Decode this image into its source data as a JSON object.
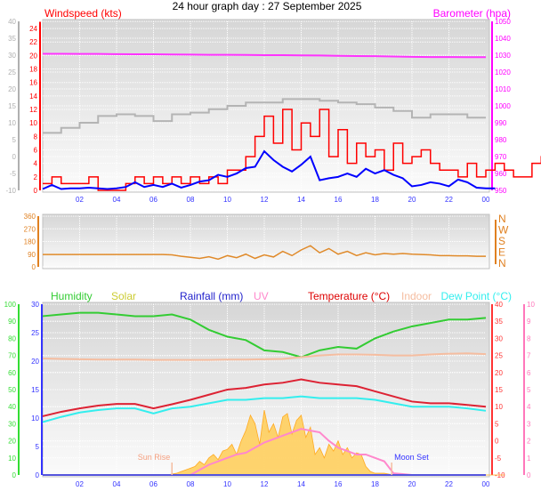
{
  "title": "24 hour graph day : 27 September 2025",
  "chart_data": [
    {
      "type": "line",
      "panel": "wind",
      "labels": {
        "left": "Windspeed (kts)",
        "right": "Barometer (hpa)"
      },
      "x_ticks": [
        "02",
        "04",
        "06",
        "08",
        "10",
        "12",
        "14",
        "16",
        "18",
        "20",
        "22",
        "00"
      ],
      "xlim_hours": [
        0,
        24
      ],
      "axes": {
        "outer_left": {
          "ticks": [
            -10,
            -5,
            0,
            5,
            10,
            15,
            20,
            25,
            30,
            35,
            40
          ],
          "range": [
            -10,
            40
          ],
          "color": "#b0b0b0"
        },
        "inner_left": {
          "ticks": [
            0,
            2,
            4,
            6,
            8,
            10,
            12,
            14,
            16,
            18,
            20,
            22,
            24
          ],
          "range": [
            0,
            25
          ],
          "color": "#ff0000"
        },
        "right": {
          "ticks": [
            950,
            960,
            970,
            980,
            990,
            1000,
            1010,
            1020,
            1030,
            1040,
            1050
          ],
          "range": [
            950,
            1050
          ],
          "color": "#ff00ff"
        }
      },
      "grid": true,
      "series": [
        {
          "key": "gust",
          "axis": "inner_left",
          "color": "#ff0000",
          "step": 0.5,
          "values": [
            1,
            2,
            1,
            1,
            1,
            2,
            0,
            0,
            0,
            1,
            2,
            1,
            2,
            1,
            2,
            1,
            2,
            1,
            2,
            1,
            3,
            3,
            5,
            8,
            11,
            7,
            12,
            6,
            10,
            8,
            12,
            5,
            9,
            4,
            7,
            5,
            6,
            3,
            7,
            4,
            5,
            6,
            4,
            3,
            3,
            2,
            4,
            2,
            3,
            4,
            3,
            2,
            2,
            4,
            5,
            3,
            2,
            2,
            1,
            2,
            1,
            1,
            2
          ]
        },
        {
          "key": "average",
          "axis": "inner_left",
          "color": "#0000ff",
          "step": 0.5,
          "values": [
            0.2,
            0.8,
            0.2,
            0.3,
            0.3,
            0.4,
            0.3,
            0.2,
            0.3,
            0.5,
            1.2,
            0.5,
            0.8,
            0.5,
            1,
            0.4,
            0.8,
            1.3,
            1.5,
            2.3,
            2,
            2.5,
            3.3,
            3.5,
            5.8,
            4.5,
            3.5,
            2.8,
            3.8,
            5,
            1.5,
            1.8,
            2,
            2.5,
            2,
            3.2,
            2.5,
            3,
            2.3,
            1.8,
            0.6,
            0.8,
            1.2,
            1,
            0.6,
            1.6,
            1.2,
            0.4,
            0.3,
            0.3
          ]
        },
        {
          "key": "barometer",
          "axis": "right",
          "color": "#ff33ff",
          "step": 1,
          "values": [
            1030.8,
            1030.8,
            1030.7,
            1030.7,
            1030.6,
            1030.5,
            1030.5,
            1030.4,
            1030.3,
            1030.2,
            1030.2,
            1030.1,
            1030,
            1030,
            1029.9,
            1029.8,
            1029.6,
            1029.5,
            1029.4,
            1029.2,
            1029,
            1028.9,
            1028.9,
            1028.8,
            1028.8
          ]
        },
        {
          "key": "grey-trace",
          "axis": "outer_left",
          "color": "#b4b4b4",
          "step": 1,
          "values": [
            7,
            8.5,
            10,
            12,
            12.5,
            12,
            10.5,
            12.5,
            13,
            14,
            15,
            16,
            16,
            17,
            17,
            16.5,
            16,
            15.5,
            14.5,
            13.5,
            11.5,
            12.5,
            12.5,
            11.5,
            11.5
          ]
        }
      ]
    },
    {
      "type": "line",
      "panel": "wind-direction",
      "axes": {
        "left": {
          "ticks": [
            0,
            90,
            180,
            270,
            360
          ],
          "range": [
            0,
            360
          ],
          "color": "#e08020"
        },
        "right": {
          "ticks": [
            "N",
            "W",
            "S",
            "E",
            "N"
          ],
          "color": "#e08020"
        }
      },
      "x_ticks": [
        "02",
        "04",
        "06",
        "08",
        "10",
        "12",
        "14",
        "16",
        "18",
        "20",
        "22",
        "00"
      ],
      "series": [
        {
          "key": "direction",
          "color": "#e08a2a",
          "step": 0.5,
          "values": [
            88,
            88,
            88,
            88,
            88,
            88,
            88,
            88,
            88,
            88,
            88,
            88,
            88,
            88,
            85,
            75,
            68,
            60,
            72,
            55,
            80,
            65,
            90,
            60,
            85,
            70,
            110,
            80,
            120,
            150,
            100,
            130,
            90,
            110,
            80,
            100,
            85,
            95,
            90,
            95,
            90,
            88,
            85,
            80,
            80,
            78,
            78,
            75,
            75
          ]
        }
      ]
    },
    {
      "type": "line",
      "panel": "temperature",
      "labels": {
        "humidity": "Humidity",
        "solar": "Solar",
        "rainfall": "Rainfall (mm)",
        "uv": "UV",
        "temperature": "Temperature (°C)",
        "indoor": "Indoor",
        "dewpoint": "Dew Point (°C)"
      },
      "x_ticks": [
        "02",
        "04",
        "06",
        "08",
        "10",
        "12",
        "14",
        "16",
        "18",
        "20",
        "22",
        "00"
      ],
      "axes": {
        "humidity": {
          "ticks": [
            0,
            10,
            20,
            30,
            40,
            50,
            60,
            70,
            80,
            90,
            100
          ],
          "range": [
            0,
            100
          ],
          "color": "#33dd33"
        },
        "rainfall": {
          "ticks": [
            0,
            5,
            10,
            15,
            20,
            25,
            30
          ],
          "range": [
            0,
            30
          ],
          "color": "#3333ff"
        },
        "temperature": {
          "ticks": [
            -10,
            -5,
            0,
            5,
            10,
            15,
            20,
            25,
            30,
            35,
            40
          ],
          "range": [
            -10,
            40
          ],
          "color": "#ff3333"
        },
        "uv": {
          "ticks": [
            0,
            1,
            2,
            3,
            4,
            5,
            6,
            7,
            8,
            9,
            10
          ],
          "range": [
            0,
            10
          ],
          "color": "#ff77bb"
        }
      },
      "annotations": [
        {
          "text": "Sun Rise",
          "hour": 7.0
        },
        {
          "text": "Moon Set",
          "hour": 18.9
        }
      ],
      "series": [
        {
          "key": "solar",
          "axis": "humidity",
          "color": "#ffbb33",
          "step": 0.25,
          "values": [
            0,
            0,
            0,
            0,
            0,
            0,
            0,
            0,
            0,
            0,
            0,
            0,
            0,
            0,
            0,
            0,
            0,
            0,
            0,
            0,
            0,
            0,
            0,
            0,
            0,
            0,
            0,
            0,
            0.5,
            1,
            2,
            3,
            4,
            5,
            8,
            6,
            10,
            12,
            9,
            14,
            15,
            18,
            12,
            20,
            26,
            35,
            30,
            18,
            38,
            25,
            30,
            22,
            34,
            36,
            24,
            32,
            35,
            22,
            28,
            12,
            16,
            10,
            18,
            14,
            20,
            12,
            16,
            10,
            13,
            12,
            5,
            2,
            1,
            1,
            1,
            0.5,
            0,
            0,
            0,
            0,
            0,
            0,
            0,
            0,
            0,
            0,
            0,
            0,
            0,
            0,
            0,
            0,
            0,
            0,
            0,
            0,
            0,
            0,
            0,
            0,
            0
          ]
        },
        {
          "key": "uv",
          "axis": "uv",
          "color": "#ff88cc",
          "step": 0.5,
          "values": [
            0,
            0,
            0,
            0,
            0,
            0,
            0,
            0,
            0,
            0,
            0,
            0,
            0,
            0,
            0,
            0,
            0,
            0.3,
            0.6,
            0.8,
            1.0,
            1.2,
            1.3,
            1.6,
            1.9,
            2.1,
            2.3,
            2.5,
            2.7,
            2.6,
            2.5,
            2.0,
            1.6,
            1.4,
            1.2,
            1.2,
            1.0,
            0.8,
            0.1,
            0.05,
            0,
            0,
            0,
            0,
            0,
            0,
            0,
            0,
            0
          ]
        },
        {
          "key": "humidity",
          "axis": "humidity",
          "color": "#33cc33",
          "step": 1,
          "values": [
            93,
            94,
            95,
            95,
            94,
            93,
            93,
            94,
            91,
            85,
            81,
            79,
            73,
            72,
            69,
            73,
            75,
            74,
            80,
            84,
            87,
            89,
            91,
            91,
            92
          ]
        },
        {
          "key": "indoor",
          "axis": "temperature",
          "color": "#f5bda0",
          "step": 1,
          "values": [
            24.1,
            24,
            23.9,
            23.8,
            23.8,
            23.8,
            23.7,
            23.7,
            23.7,
            23.7,
            23.8,
            23.8,
            23.9,
            24,
            24.5,
            25,
            25.3,
            25.3,
            25.2,
            25,
            25,
            25.3,
            25.5,
            25.6,
            25.4
          ]
        },
        {
          "key": "temperature",
          "axis": "temperature",
          "color": "#dd2233",
          "step": 1,
          "values": [
            7.2,
            8.5,
            9.5,
            10.3,
            10.8,
            10.8,
            9.5,
            10.7,
            12,
            13.5,
            15,
            15.5,
            16.5,
            17,
            18,
            17,
            16.5,
            16,
            14.5,
            13,
            11.5,
            11,
            11,
            10.5,
            10
          ]
        },
        {
          "key": "dewpoint",
          "axis": "temperature",
          "color": "#33eeee",
          "step": 1,
          "values": [
            5.5,
            7,
            8.3,
            9,
            9.5,
            9.5,
            8,
            9.5,
            10,
            11,
            12,
            12,
            12.5,
            12.5,
            13,
            12.5,
            12.5,
            12.5,
            12,
            11,
            10,
            10,
            10,
            9.5,
            8.8
          ]
        },
        {
          "key": "rainfall",
          "axis": "rainfall",
          "color": "#5555dd",
          "step": 24,
          "values": [
            0,
            0
          ]
        }
      ]
    }
  ]
}
